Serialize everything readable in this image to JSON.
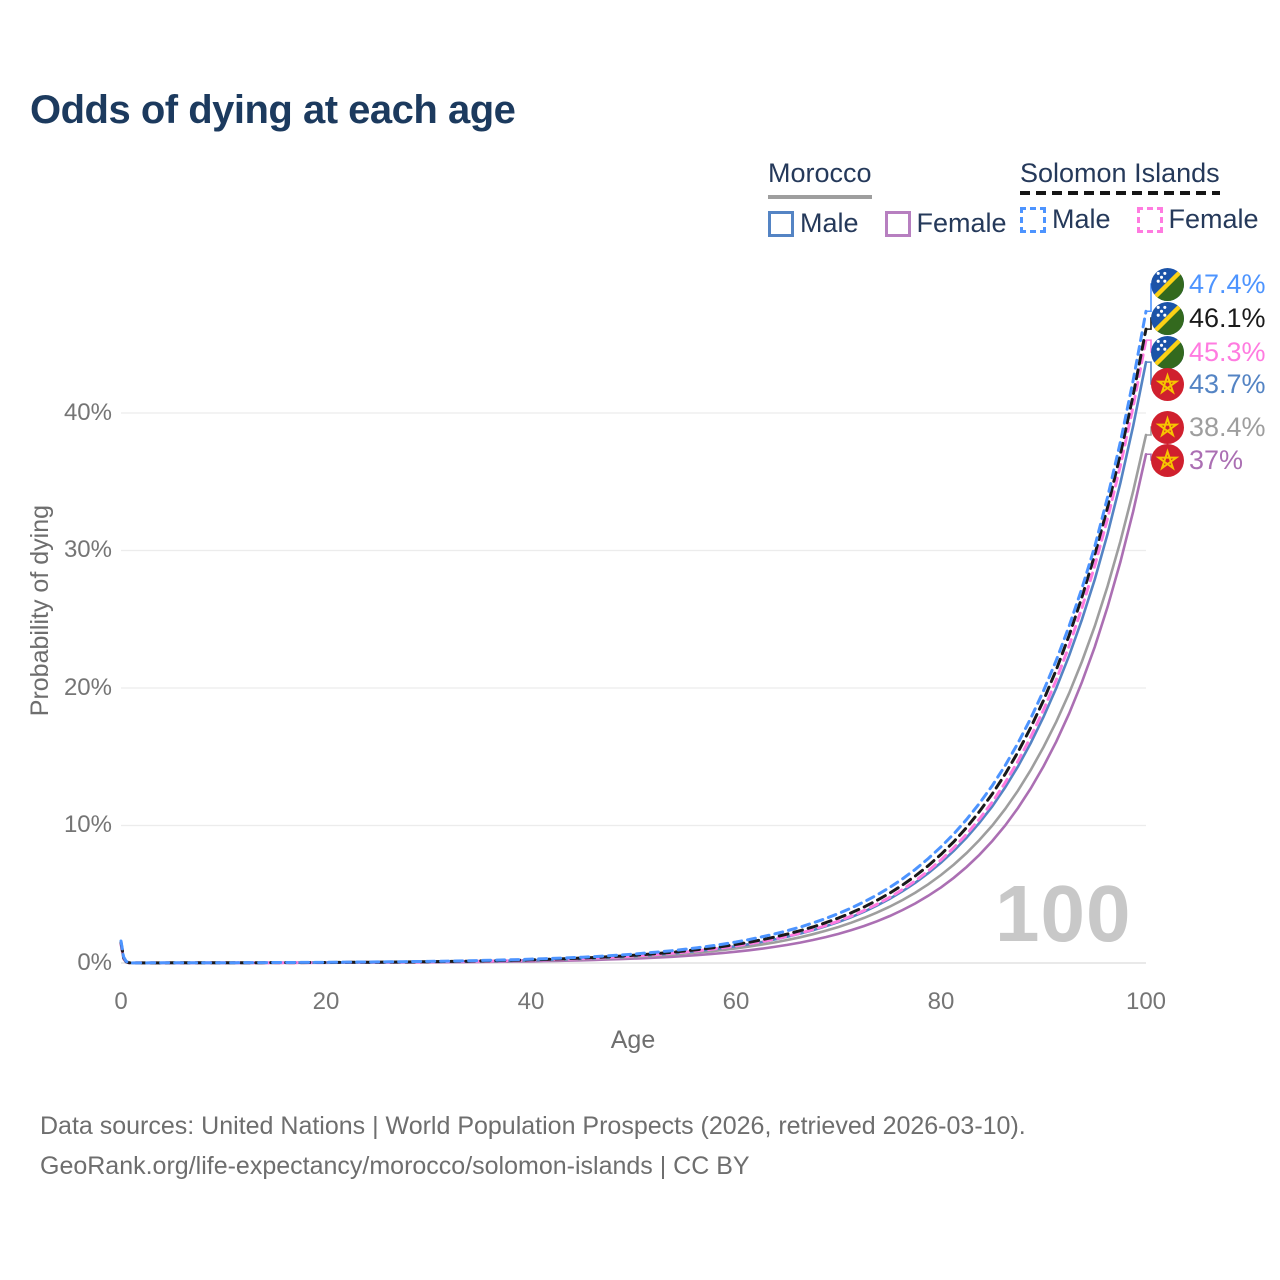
{
  "title": "Odds of dying at each age",
  "legend": {
    "groups": [
      {
        "name": "Morocco",
        "line_style": "solid",
        "items": [
          {
            "label": "Male",
            "color": "#5484c4",
            "line_style": "solid"
          },
          {
            "label": "Female",
            "color": "#b77fc0",
            "line_style": "solid"
          }
        ]
      },
      {
        "name": "Solomon Islands",
        "line_style": "dashed",
        "items": [
          {
            "label": "Male",
            "color": "#4d94ff",
            "line_style": "dashed"
          },
          {
            "label": "Female",
            "color": "#ff7be0",
            "line_style": "dashed"
          }
        ]
      }
    ]
  },
  "watermark": "100",
  "footer": {
    "line1": "Data sources: United Nations | World Population Prospects (2026, retrieved 2026-03-10).",
    "line2": "GeoRank.org/life-expectancy/morocco/solomon-islands | CC BY"
  },
  "chart_data": {
    "type": "line",
    "title": "Odds of dying at each age",
    "xlabel": "Age",
    "ylabel": "Probability of dying",
    "x_ticks": [
      "0",
      "20",
      "40",
      "60",
      "80",
      "100"
    ],
    "y_ticks": [
      "0%",
      "10%",
      "20%",
      "30%",
      "40%"
    ],
    "xlim": [
      0,
      100
    ],
    "ylim_percent": [
      0,
      47.5
    ],
    "grid": true,
    "legend_position": "top-right",
    "x": [
      0,
      1,
      5,
      10,
      15,
      20,
      25,
      30,
      35,
      40,
      45,
      50,
      55,
      60,
      65,
      70,
      75,
      80,
      85,
      90,
      95,
      100
    ],
    "series": [
      {
        "name": "Solomon Islands Male",
        "country": "Solomon Islands",
        "sex": "Male",
        "color": "#4d94ff",
        "style": "dashed",
        "end_label": "47.4%",
        "flag": "solomon-islands-flag",
        "values_percent": [
          1.6,
          0.01,
          0.014,
          0.022,
          0.033,
          0.05,
          0.077,
          0.118,
          0.18,
          0.28,
          0.42,
          0.65,
          1.0,
          1.53,
          2.35,
          3.6,
          5.5,
          8.45,
          12.9,
          19.8,
          30.3,
          47.4
        ]
      },
      {
        "name": "Solomon Islands Both sexes",
        "country": "Solomon Islands",
        "sex": "Both",
        "color": "#1a1a1a",
        "style": "dashed",
        "end_label": "46.1%",
        "flag": "solomon-islands-flag",
        "values_percent": [
          1.5,
          0.007,
          0.011,
          0.016,
          0.026,
          0.04,
          0.06,
          0.096,
          0.15,
          0.23,
          0.36,
          0.56,
          0.87,
          1.35,
          2.1,
          3.27,
          5.08,
          7.9,
          12.3,
          19.1,
          29.7,
          46.1
        ]
      },
      {
        "name": "Solomon Islands Female",
        "country": "Solomon Islands",
        "sex": "Female",
        "color": "#ff7be0",
        "style": "dashed",
        "end_label": "45.3%",
        "flag": "solomon-islands-flag",
        "values_percent": [
          1.4,
          0.006,
          0.009,
          0.014,
          0.021,
          0.034,
          0.053,
          0.083,
          0.13,
          0.2,
          0.32,
          0.5,
          0.79,
          1.24,
          1.94,
          3.05,
          4.78,
          7.5,
          11.7,
          18.4,
          28.9,
          45.3
        ]
      },
      {
        "name": "Morocco Male",
        "country": "Morocco",
        "sex": "Male",
        "color": "#5484c4",
        "style": "solid",
        "end_label": "43.7%",
        "flag": "morocco-flag",
        "values_percent": [
          1.5,
          0.006,
          0.009,
          0.014,
          0.022,
          0.034,
          0.054,
          0.084,
          0.13,
          0.2,
          0.32,
          0.5,
          0.78,
          1.22,
          1.91,
          2.98,
          4.67,
          7.3,
          11.4,
          17.9,
          27.9,
          43.7
        ]
      },
      {
        "name": "Morocco Both sexes",
        "country": "Morocco",
        "sex": "Both",
        "color": "#9e9e9e",
        "style": "solid",
        "end_label": "38.4%",
        "flag": "morocco-flag",
        "values_percent": [
          1.4,
          0.005,
          0.008,
          0.012,
          0.019,
          0.03,
          0.047,
          0.073,
          0.11,
          0.18,
          0.28,
          0.44,
          0.68,
          1.07,
          1.67,
          2.62,
          4.1,
          6.4,
          10.0,
          15.7,
          24.5,
          38.4
        ]
      },
      {
        "name": "Morocco Female",
        "country": "Morocco",
        "sex": "Female",
        "color": "#ab6fb3",
        "style": "solid",
        "end_label": "37%",
        "flag": "morocco-flag",
        "values_percent": [
          1.3,
          0.003,
          0.004,
          0.007,
          0.012,
          0.018,
          0.03,
          0.048,
          0.077,
          0.12,
          0.2,
          0.32,
          0.51,
          0.82,
          1.32,
          2.12,
          3.42,
          5.5,
          8.87,
          14.3,
          23.0,
          37.0
        ]
      }
    ]
  }
}
